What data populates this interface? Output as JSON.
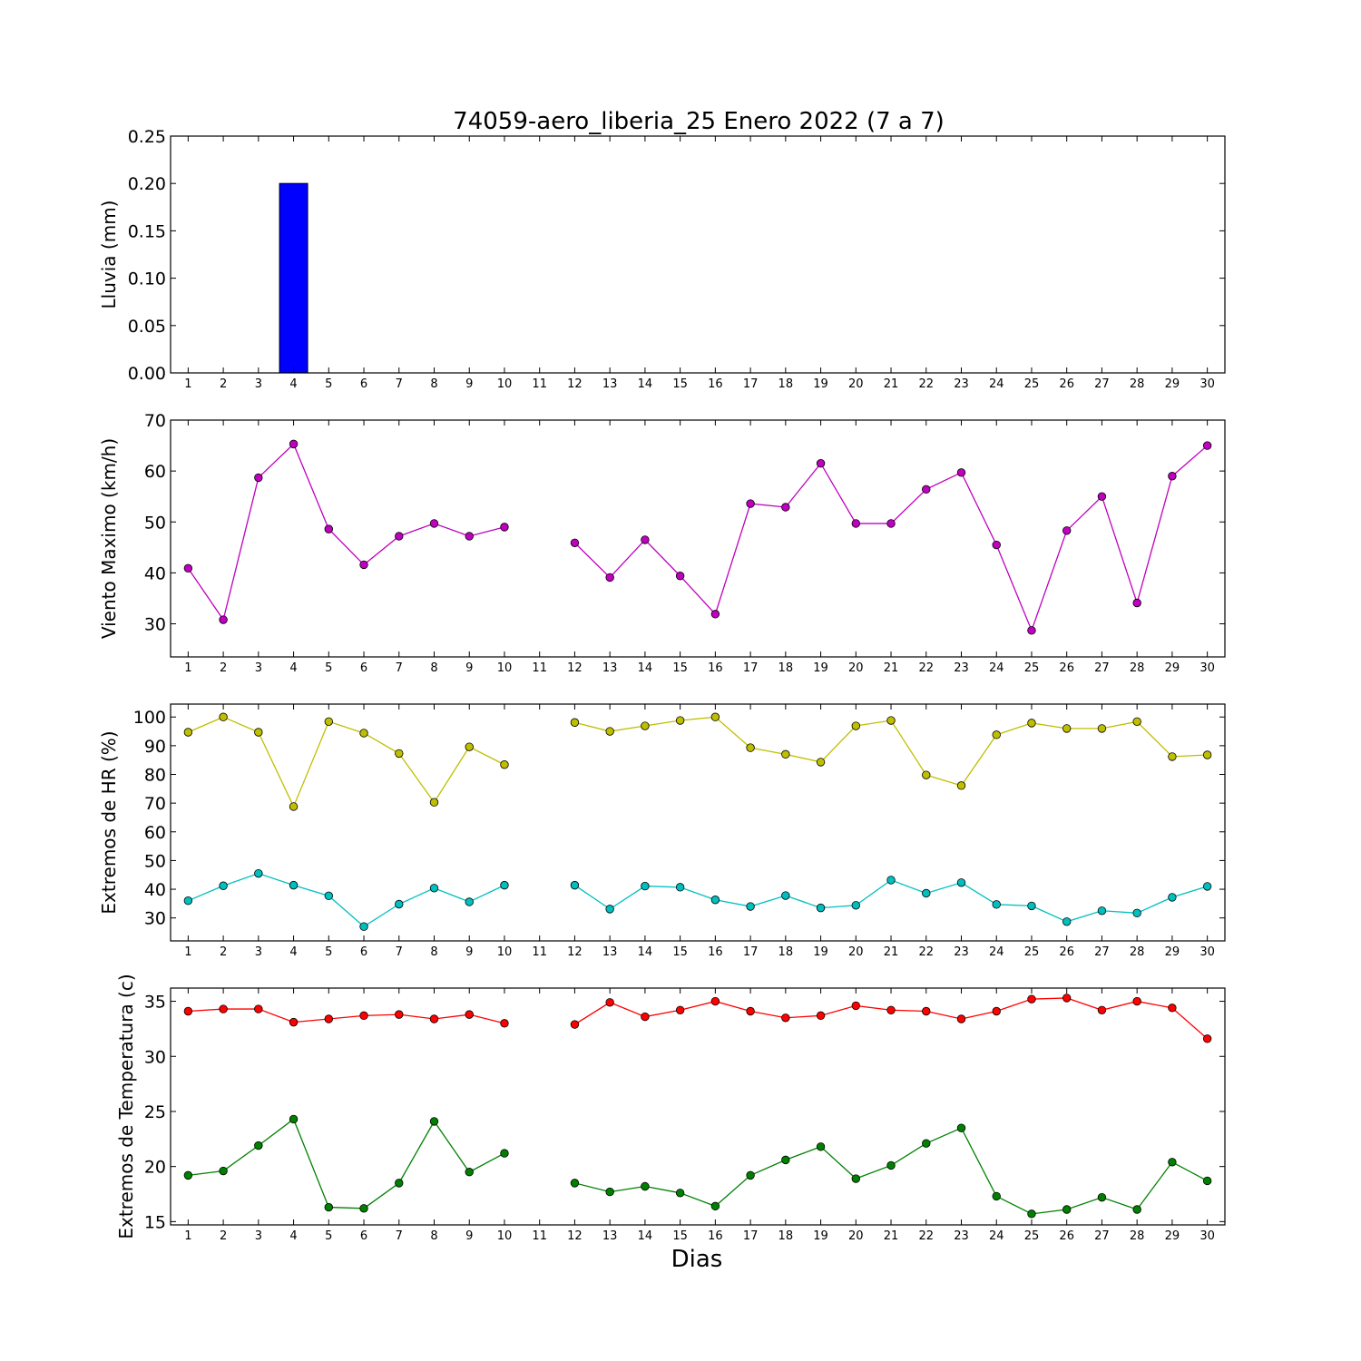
{
  "title": "74059-aero_liberia_25 Enero 2022  (7 a 7)",
  "xlabel": "Dias",
  "chart_data": [
    {
      "type": "bar",
      "ylabel": "Lluvia (mm)",
      "x": [
        1,
        2,
        3,
        4,
        5,
        6,
        7,
        8,
        9,
        10,
        11,
        12,
        13,
        14,
        15,
        16,
        17,
        18,
        19,
        20,
        21,
        22,
        23,
        24,
        25,
        26,
        27,
        28,
        29,
        30
      ],
      "ylim": [
        0,
        0.25
      ],
      "yticks": [
        0.0,
        0.05,
        0.1,
        0.15,
        0.2,
        0.25
      ],
      "ytick_labels": [
        "0.00",
        "0.05",
        "0.10",
        "0.15",
        "0.20",
        "0.25"
      ],
      "series": [
        {
          "color": "#0000ff",
          "values": [
            0,
            0,
            0,
            0.2,
            0,
            0,
            0,
            0,
            0,
            0,
            0,
            0,
            0,
            0,
            0,
            0,
            0,
            0,
            0,
            0,
            0,
            0,
            0,
            0,
            0,
            0,
            0,
            0,
            0,
            0
          ]
        }
      ]
    },
    {
      "type": "line",
      "ylabel": "Viento Maximo (km/h)",
      "x": [
        1,
        2,
        3,
        4,
        5,
        6,
        7,
        8,
        9,
        10,
        11,
        12,
        13,
        14,
        15,
        16,
        17,
        18,
        19,
        20,
        21,
        22,
        23,
        24,
        25,
        26,
        27,
        28,
        29,
        30
      ],
      "ylim": [
        23.5,
        70
      ],
      "yticks": [
        30,
        40,
        50,
        60,
        70
      ],
      "ytick_labels": [
        "30",
        "40",
        "50",
        "60",
        "70"
      ],
      "series": [
        {
          "color": "#bf00bf",
          "values": [
            40.9,
            30.8,
            58.7,
            65.3,
            48.6,
            41.6,
            47.2,
            49.7,
            47.2,
            49.0,
            null,
            45.9,
            39.1,
            46.5,
            39.4,
            31.9,
            53.6,
            52.9,
            61.5,
            49.7,
            49.7,
            56.4,
            59.7,
            45.5,
            28.7,
            48.3,
            55.0,
            34.1,
            59.0,
            65.0
          ]
        }
      ]
    },
    {
      "type": "line",
      "ylabel": "Extremos de HR (%)",
      "x": [
        1,
        2,
        3,
        4,
        5,
        6,
        7,
        8,
        9,
        10,
        11,
        12,
        13,
        14,
        15,
        16,
        17,
        18,
        19,
        20,
        21,
        22,
        23,
        24,
        25,
        26,
        27,
        28,
        29,
        30
      ],
      "ylim": [
        22,
        104.5
      ],
      "yticks": [
        30,
        40,
        50,
        60,
        70,
        80,
        90,
        100
      ],
      "ytick_labels": [
        "30",
        "40",
        "50",
        "60",
        "70",
        "80",
        "90",
        "100"
      ],
      "series": [
        {
          "color": "#bfbf00",
          "values": [
            94.7,
            100.0,
            94.7,
            68.8,
            98.4,
            94.4,
            87.3,
            70.3,
            89.6,
            83.4,
            null,
            98.1,
            95.0,
            96.9,
            98.8,
            100.0,
            89.3,
            87.0,
            84.3,
            96.9,
            98.8,
            79.8,
            76.1,
            93.8,
            97.9,
            96.0,
            96.0,
            98.4,
            86.2,
            86.8
          ]
        },
        {
          "color": "#00bfbf",
          "values": [
            36.0,
            41.2,
            45.5,
            41.4,
            37.7,
            27.0,
            34.8,
            40.4,
            35.6,
            41.4,
            null,
            41.4,
            33.1,
            41.1,
            40.7,
            36.3,
            34.0,
            37.8,
            33.5,
            34.4,
            43.2,
            38.6,
            42.3,
            34.7,
            34.2,
            28.7,
            32.5,
            31.7,
            37.2,
            41.0
          ]
        }
      ]
    },
    {
      "type": "line",
      "ylabel": "Extremos de Temperatura (c)",
      "x": [
        1,
        2,
        3,
        4,
        5,
        6,
        7,
        8,
        9,
        10,
        11,
        12,
        13,
        14,
        15,
        16,
        17,
        18,
        19,
        20,
        21,
        22,
        23,
        24,
        25,
        26,
        27,
        28,
        29,
        30
      ],
      "ylim": [
        14.7,
        36.2
      ],
      "yticks": [
        15,
        20,
        25,
        30,
        35
      ],
      "ytick_labels": [
        "15",
        "20",
        "25",
        "30",
        "35"
      ],
      "series": [
        {
          "color": "#ff0000",
          "values": [
            34.1,
            34.3,
            34.3,
            33.1,
            33.4,
            33.7,
            33.8,
            33.4,
            33.8,
            33.0,
            null,
            32.9,
            34.9,
            33.6,
            34.2,
            35.0,
            34.1,
            33.5,
            33.7,
            34.6,
            34.2,
            34.1,
            33.4,
            34.1,
            35.2,
            35.3,
            34.2,
            35.0,
            34.4,
            31.6
          ]
        },
        {
          "color": "#008000",
          "values": [
            19.2,
            19.6,
            21.9,
            24.3,
            16.3,
            16.2,
            18.5,
            24.1,
            19.5,
            21.2,
            null,
            18.5,
            17.7,
            18.2,
            17.6,
            16.4,
            19.2,
            20.6,
            21.8,
            18.9,
            20.1,
            22.1,
            23.5,
            17.3,
            15.7,
            16.1,
            17.2,
            16.1,
            20.4,
            18.7
          ]
        }
      ]
    }
  ]
}
